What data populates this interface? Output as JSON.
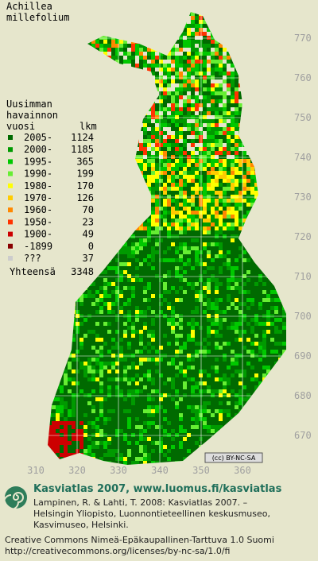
{
  "map": {
    "species": [
      "Achillea",
      "millefolium"
    ],
    "legend_title": [
      "Uusimman",
      "havainnon"
    ],
    "column_headers": [
      "vuosi",
      "lkm"
    ],
    "legend": [
      {
        "label": "2005-",
        "count": 1124,
        "color": "#006a00"
      },
      {
        "label": "2000-",
        "count": 1185,
        "color": "#009a00"
      },
      {
        "label": "1995-",
        "count": 365,
        "color": "#00c800"
      },
      {
        "label": "1990-",
        "count": 199,
        "color": "#66ee33"
      },
      {
        "label": "1980-",
        "count": 170,
        "color": "#ffff00"
      },
      {
        "label": "1970-",
        "count": 126,
        "color": "#ffcc00"
      },
      {
        "label": "1960-",
        "count": 70,
        "color": "#ff8800"
      },
      {
        "label": "1950-",
        "count": 23,
        "color": "#ff3300"
      },
      {
        "label": "1900-",
        "count": 49,
        "color": "#cc0000"
      },
      {
        "label": "-1899",
        "count": 0,
        "color": "#880000"
      },
      {
        "label": "???",
        "count": 37,
        "color": "#cccccc"
      }
    ],
    "total_label": "Yhteensä",
    "total": 3348,
    "y_labels": [
      770,
      760,
      750,
      740,
      730,
      720,
      710,
      700,
      690,
      680,
      670
    ],
    "x_labels": [
      310,
      320,
      330,
      340,
      350,
      360
    ],
    "license_badge": "(cc) BY-NC-SA"
  },
  "footer": {
    "site": "Kasviatlas 2007, www.luomus.fi/kasviatlas",
    "citation": [
      "Lampinen, R. & Lahti, T. 2008: Kasviatlas 2007. –",
      "Helsingin Yliopisto, Luonnontieteellinen keskusmuseo,",
      "Kasvimuseo, Helsinki."
    ],
    "license": [
      "Creative Commons Nimeä-Epäkaupallinen-Tarttuva 1.0 Suomi",
      "http://creativecommons.org/licenses/by-nc-sa/1.0/fi"
    ]
  }
}
